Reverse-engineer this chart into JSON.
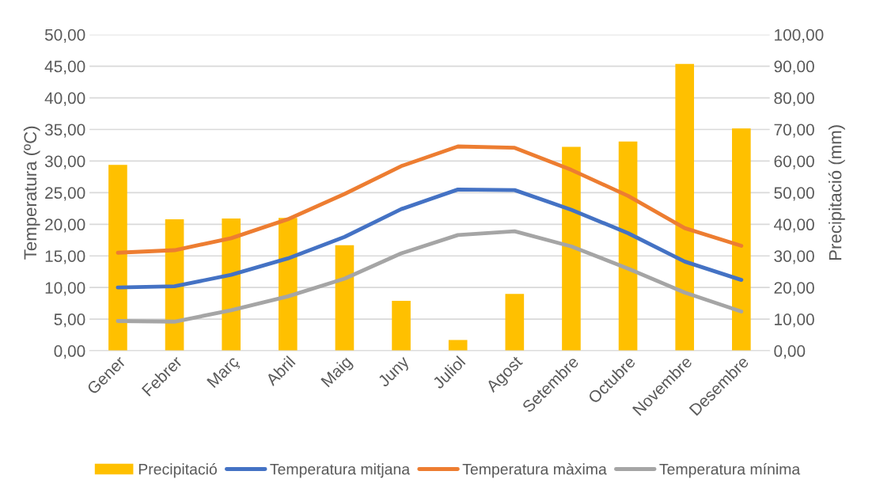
{
  "chart_data": {
    "type": "line",
    "ylabel": "Temperatura (ºC)",
    "y2label": "Precipitació (mm)",
    "categories": [
      "Gener",
      "Febrer",
      "Març",
      "Abril",
      "Maig",
      "Juny",
      "Juliol",
      "Agost",
      "Setembre",
      "Octubre",
      "Novembre",
      "Desembre"
    ],
    "series": [
      {
        "name": "Precipitació",
        "type": "bar",
        "axis": "y2",
        "color": "#ffc000",
        "values": [
          58.8,
          41.6,
          41.8,
          42.0,
          33.4,
          15.8,
          3.4,
          18.0,
          64.5,
          66.2,
          90.7,
          70.3
        ]
      },
      {
        "name": "Temperatura mitjana",
        "color": "#4472c4",
        "values": [
          10.0,
          10.2,
          12.0,
          14.6,
          18.0,
          22.4,
          25.5,
          25.4,
          22.3,
          18.6,
          14.1,
          11.2
        ]
      },
      {
        "name": "Temperatura màxima",
        "color": "#ed7d31",
        "values": [
          15.5,
          15.9,
          17.8,
          20.8,
          24.8,
          29.2,
          32.3,
          32.1,
          28.6,
          24.5,
          19.4,
          16.6
        ]
      },
      {
        "name": "Temperatura mínima",
        "color": "#a5a5a5",
        "values": [
          4.7,
          4.6,
          6.4,
          8.6,
          11.4,
          15.4,
          18.3,
          18.9,
          16.5,
          13.0,
          9.2,
          6.2
        ]
      }
    ],
    "ylim": [
      0,
      50
    ],
    "yticks": [
      {
        "value": 0,
        "label": "0,00"
      },
      {
        "value": 5,
        "label": "5,00"
      },
      {
        "value": 10,
        "label": "10,00"
      },
      {
        "value": 15,
        "label": "15,00"
      },
      {
        "value": 20,
        "label": "20,00"
      },
      {
        "value": 25,
        "label": "25,00"
      },
      {
        "value": 30,
        "label": "30,00"
      },
      {
        "value": 35,
        "label": "35,00"
      },
      {
        "value": 40,
        "label": "40,00"
      },
      {
        "value": 45,
        "label": "45,00"
      },
      {
        "value": 50,
        "label": "50,00"
      }
    ],
    "y2lim": [
      0,
      100
    ],
    "y2ticks": [
      {
        "value": 0,
        "label": "0,00"
      },
      {
        "value": 10,
        "label": "10,00"
      },
      {
        "value": 20,
        "label": "20,00"
      },
      {
        "value": 30,
        "label": "30,00"
      },
      {
        "value": 40,
        "label": "40,00"
      },
      {
        "value": 50,
        "label": "50,00"
      },
      {
        "value": 60,
        "label": "60,00"
      },
      {
        "value": 70,
        "label": "70,00"
      },
      {
        "value": 80,
        "label": "80,00"
      },
      {
        "value": 90,
        "label": "90,00"
      },
      {
        "value": 100,
        "label": "100,00"
      }
    ],
    "grid": "y",
    "legend": "bottom",
    "marker": "none",
    "line_style": "solid"
  }
}
